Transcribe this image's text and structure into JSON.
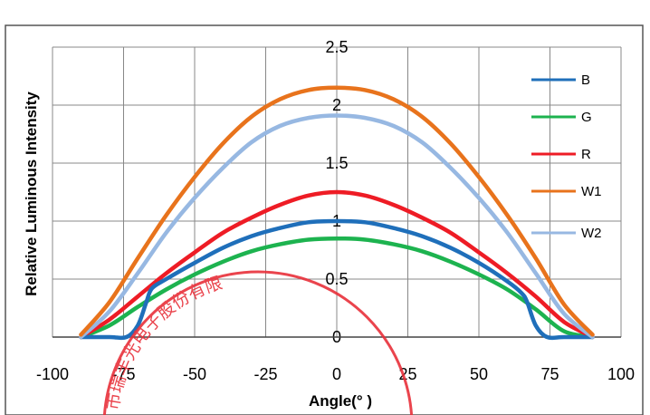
{
  "chart_data": {
    "type": "line",
    "title": "",
    "xlabel": "Angle(° )",
    "ylabel": "Relative Luminous Intensity",
    "xlim": [
      -100,
      100
    ],
    "ylim": [
      0,
      2.5
    ],
    "x_ticks": [
      -100,
      -75,
      -50,
      -25,
      0,
      25,
      50,
      75,
      100
    ],
    "x_tick_labels": [
      "-100",
      "-75",
      "-50",
      "-25",
      "0",
      "25",
      "50",
      "75",
      "100"
    ],
    "y_ticks": [
      0,
      0.5,
      1,
      1.5,
      2,
      2.5
    ],
    "y_tick_labels": [
      "0",
      "0.5",
      "1",
      "1.5",
      "2",
      "2.5"
    ],
    "grid": true,
    "legend_position": "right",
    "colors": {
      "B": "#1f6fba",
      "G": "#1db34f",
      "R": "#ee1c25",
      "W1": "#e8731c",
      "W2": "#97b8e2",
      "grid": "#888888",
      "stamp": "#e8303a"
    },
    "series": [
      {
        "name": "B",
        "x": [
          -90,
          -80,
          -74,
          -70,
          -67,
          -65,
          -60,
          -50,
          -40,
          -30,
          -20,
          -10,
          0,
          10,
          20,
          30,
          40,
          50,
          60,
          65,
          67,
          70,
          74,
          80,
          90
        ],
        "values": [
          0,
          0,
          0,
          0.1,
          0.3,
          0.42,
          0.5,
          0.64,
          0.77,
          0.87,
          0.94,
          0.99,
          1.0,
          0.99,
          0.94,
          0.87,
          0.77,
          0.64,
          0.48,
          0.38,
          0.3,
          0.1,
          0,
          0,
          0
        ]
      },
      {
        "name": "G",
        "x": [
          -90,
          -80,
          -70,
          -60,
          -50,
          -40,
          -30,
          -20,
          -10,
          0,
          10,
          20,
          30,
          40,
          50,
          60,
          70,
          80,
          90
        ],
        "values": [
          0,
          0.1,
          0.26,
          0.41,
          0.54,
          0.65,
          0.74,
          0.8,
          0.84,
          0.85,
          0.84,
          0.8,
          0.74,
          0.65,
          0.54,
          0.41,
          0.24,
          0.05,
          0
        ]
      },
      {
        "name": "R",
        "x": [
          -90,
          -80,
          -70,
          -60,
          -50,
          -40,
          -30,
          -20,
          -10,
          0,
          10,
          20,
          30,
          40,
          50,
          60,
          70,
          80,
          90
        ],
        "values": [
          0,
          0.15,
          0.35,
          0.55,
          0.73,
          0.9,
          1.03,
          1.14,
          1.22,
          1.25,
          1.22,
          1.14,
          1.03,
          0.9,
          0.73,
          0.55,
          0.35,
          0.13,
          0
        ]
      },
      {
        "name": "W1",
        "x": [
          -90,
          -80,
          -70,
          -60,
          -50,
          -40,
          -30,
          -20,
          -10,
          0,
          10,
          20,
          30,
          40,
          50,
          60,
          70,
          80,
          90
        ],
        "values": [
          0.02,
          0.3,
          0.68,
          1.05,
          1.38,
          1.67,
          1.9,
          2.05,
          2.13,
          2.15,
          2.13,
          2.05,
          1.9,
          1.67,
          1.38,
          1.05,
          0.68,
          0.28,
          0.02
        ]
      },
      {
        "name": "W2",
        "x": [
          -90,
          -80,
          -70,
          -60,
          -50,
          -40,
          -30,
          -20,
          -10,
          0,
          10,
          20,
          30,
          40,
          50,
          60,
          70,
          80,
          90
        ],
        "values": [
          0,
          0.22,
          0.55,
          0.9,
          1.2,
          1.46,
          1.68,
          1.82,
          1.89,
          1.91,
          1.89,
          1.82,
          1.68,
          1.46,
          1.2,
          0.9,
          0.55,
          0.2,
          0
        ]
      }
    ],
    "watermark": {
      "kind": "red company seal",
      "text": "市瑞丰光电子股份有限"
    }
  }
}
